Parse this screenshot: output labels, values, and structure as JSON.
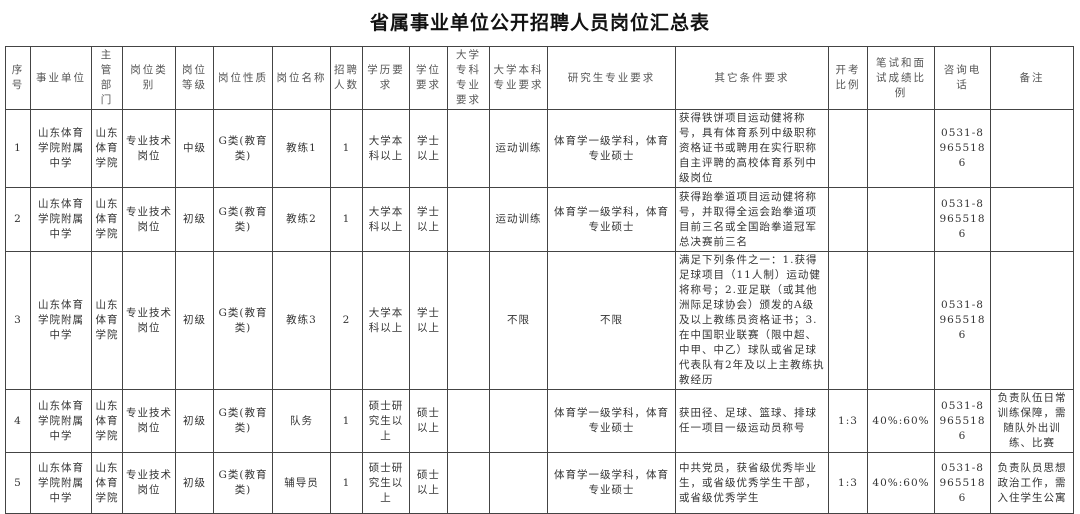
{
  "title": "省属事业单位公开招聘人员岗位汇总表",
  "headers": [
    "序号",
    "事业单位",
    "主管部门",
    "岗位类别",
    "岗位等级",
    "岗位性质",
    "岗位名称",
    "招聘人数",
    "学历要求",
    "学位要求",
    "大学专科专业要求",
    "大学本科专业要求",
    "研究生专业要求",
    "其它条件要求",
    "开考比例",
    "笔试和面试成绩比例",
    "咨询电话",
    "备注"
  ],
  "rows": [
    [
      "1",
      "山东体育学院附属中学",
      "山东体育学院",
      "专业技术岗位",
      "中级",
      "G类(教育类)",
      "教练1",
      "1",
      "大学本科以上",
      "学士以上",
      "",
      "运动训练",
      "体育学一级学科，体育专业硕士",
      "获得铁饼项目运动健将称号，具有体育系列中级职称资格证书或聘用在实行职称自主评聘的高校体育系列中级岗位",
      "",
      "",
      "0531-89655186",
      ""
    ],
    [
      "2",
      "山东体育学院附属中学",
      "山东体育学院",
      "专业技术岗位",
      "初级",
      "G类(教育类)",
      "教练2",
      "1",
      "大学本科以上",
      "学士以上",
      "",
      "运动训练",
      "体育学一级学科，体育专业硕士",
      "获得跆拳道项目运动健将称号，并取得全运会跆拳道项目前三名或全国跆拳道冠军总决赛前三名",
      "",
      "",
      "0531-89655186",
      ""
    ],
    [
      "3",
      "山东体育学院附属中学",
      "山东体育学院",
      "专业技术岗位",
      "初级",
      "G类(教育类)",
      "教练3",
      "2",
      "大学本科以上",
      "学士以上",
      "",
      "不限",
      "不限",
      "满足下列条件之一：1.获得足球项目（11人制）运动健将称号；2.亚足联（或其他洲际足球协会）颁发的A级及以上教练员资格证书；3.在中国职业联赛（限中超、中甲、中乙）球队或省足球代表队有2年及以上主教练执教经历",
      "",
      "",
      "0531-89655186",
      ""
    ],
    [
      "4",
      "山东体育学院附属中学",
      "山东体育学院",
      "专业技术岗位",
      "初级",
      "G类(教育类)",
      "队务",
      "1",
      "硕士研究生以上",
      "硕士以上",
      "",
      "",
      "体育学一级学科，体育专业硕士",
      "获田径、足球、篮球、排球任一项目一级运动员称号",
      "1:3",
      "40%:60%",
      "0531-89655186",
      "负责队伍日常训练保障，需随队外出训练、比赛"
    ],
    [
      "5",
      "山东体育学院附属中学",
      "山东体育学院",
      "专业技术岗位",
      "初级",
      "G类(教育类)",
      "辅导员",
      "1",
      "硕士研究生以上",
      "硕士以上",
      "",
      "",
      "体育学一级学科，体育专业硕士",
      "中共党员，获省级优秀毕业生，或省级优秀学生干部，或省级优秀学生",
      "1:3",
      "40%:60%",
      "0531-89655186",
      "负责队员思想政治工作，需入住学生公寓"
    ]
  ]
}
